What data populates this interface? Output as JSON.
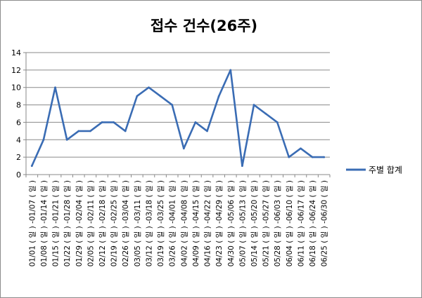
{
  "chart_data": {
    "type": "line",
    "title": "접수 건수(26주)",
    "xlabel": "",
    "ylabel": "",
    "ylim": [
      0,
      14
    ],
    "yticks": [
      "0",
      "2",
      "4",
      "6",
      "8",
      "10",
      "12",
      "14"
    ],
    "grid": true,
    "legend_position": "right",
    "line_color": "#3a6cb4",
    "categories": [
      "01/01 ( 일 ) -01/07 ( 일 )",
      "01/08 ( 일 ) -01/14 ( 일 )",
      "01/15 ( 일 ) -01/21 ( 일 )",
      "01/22 ( 일 ) -01/28 ( 일 )",
      "01/29 ( 일 ) -02/04 ( 일 )",
      "02/05 ( 일 ) -02/11 ( 일 )",
      "02/12 ( 일 ) -02/18 ( 일 )",
      "02/19 ( 일 ) -02/25 ( 일 )",
      "02/26 ( 일 ) -03/04 ( 일 )",
      "03/05 ( 일 ) -03/11 ( 일 )",
      "03/12 ( 일 ) -03/18 ( 일 )",
      "03/19 ( 일 ) -03/25 ( 일 )",
      "03/26 ( 일 ) -04/01 ( 일 )",
      "04/02 ( 일 ) -04/08 ( 일 )",
      "04/09 ( 일 ) -04/15 ( 일 )",
      "04/16 ( 일 ) -04/22 ( 일 )",
      "04/23 ( 일 ) -04/29 ( 일 )",
      "04/30 ( 일 ) -05/06 ( 일 )",
      "05/07 ( 일 ) -05/13 ( 일 )",
      "05/14 ( 일 ) -05/20 ( 일 )",
      "05/21 ( 일 ) -05/27 ( 일 )",
      "05/28 ( 일 ) -06/03 ( 일 )",
      "06/04 ( 일 ) -06/10 ( 일 )",
      "06/11 ( 일 ) -06/17 ( 일 )",
      "06/18 ( 일 ) -06/24 ( 일 )",
      "06/25 ( 일 ) -06/30 ( 일 )"
    ],
    "series": [
      {
        "name": "주별 합계",
        "values": [
          1,
          4,
          10,
          4,
          5,
          5,
          6,
          6,
          5,
          9,
          10,
          9,
          8,
          3,
          6,
          5,
          9,
          12,
          1,
          8,
          7,
          6,
          2,
          3,
          2,
          2
        ]
      }
    ]
  }
}
